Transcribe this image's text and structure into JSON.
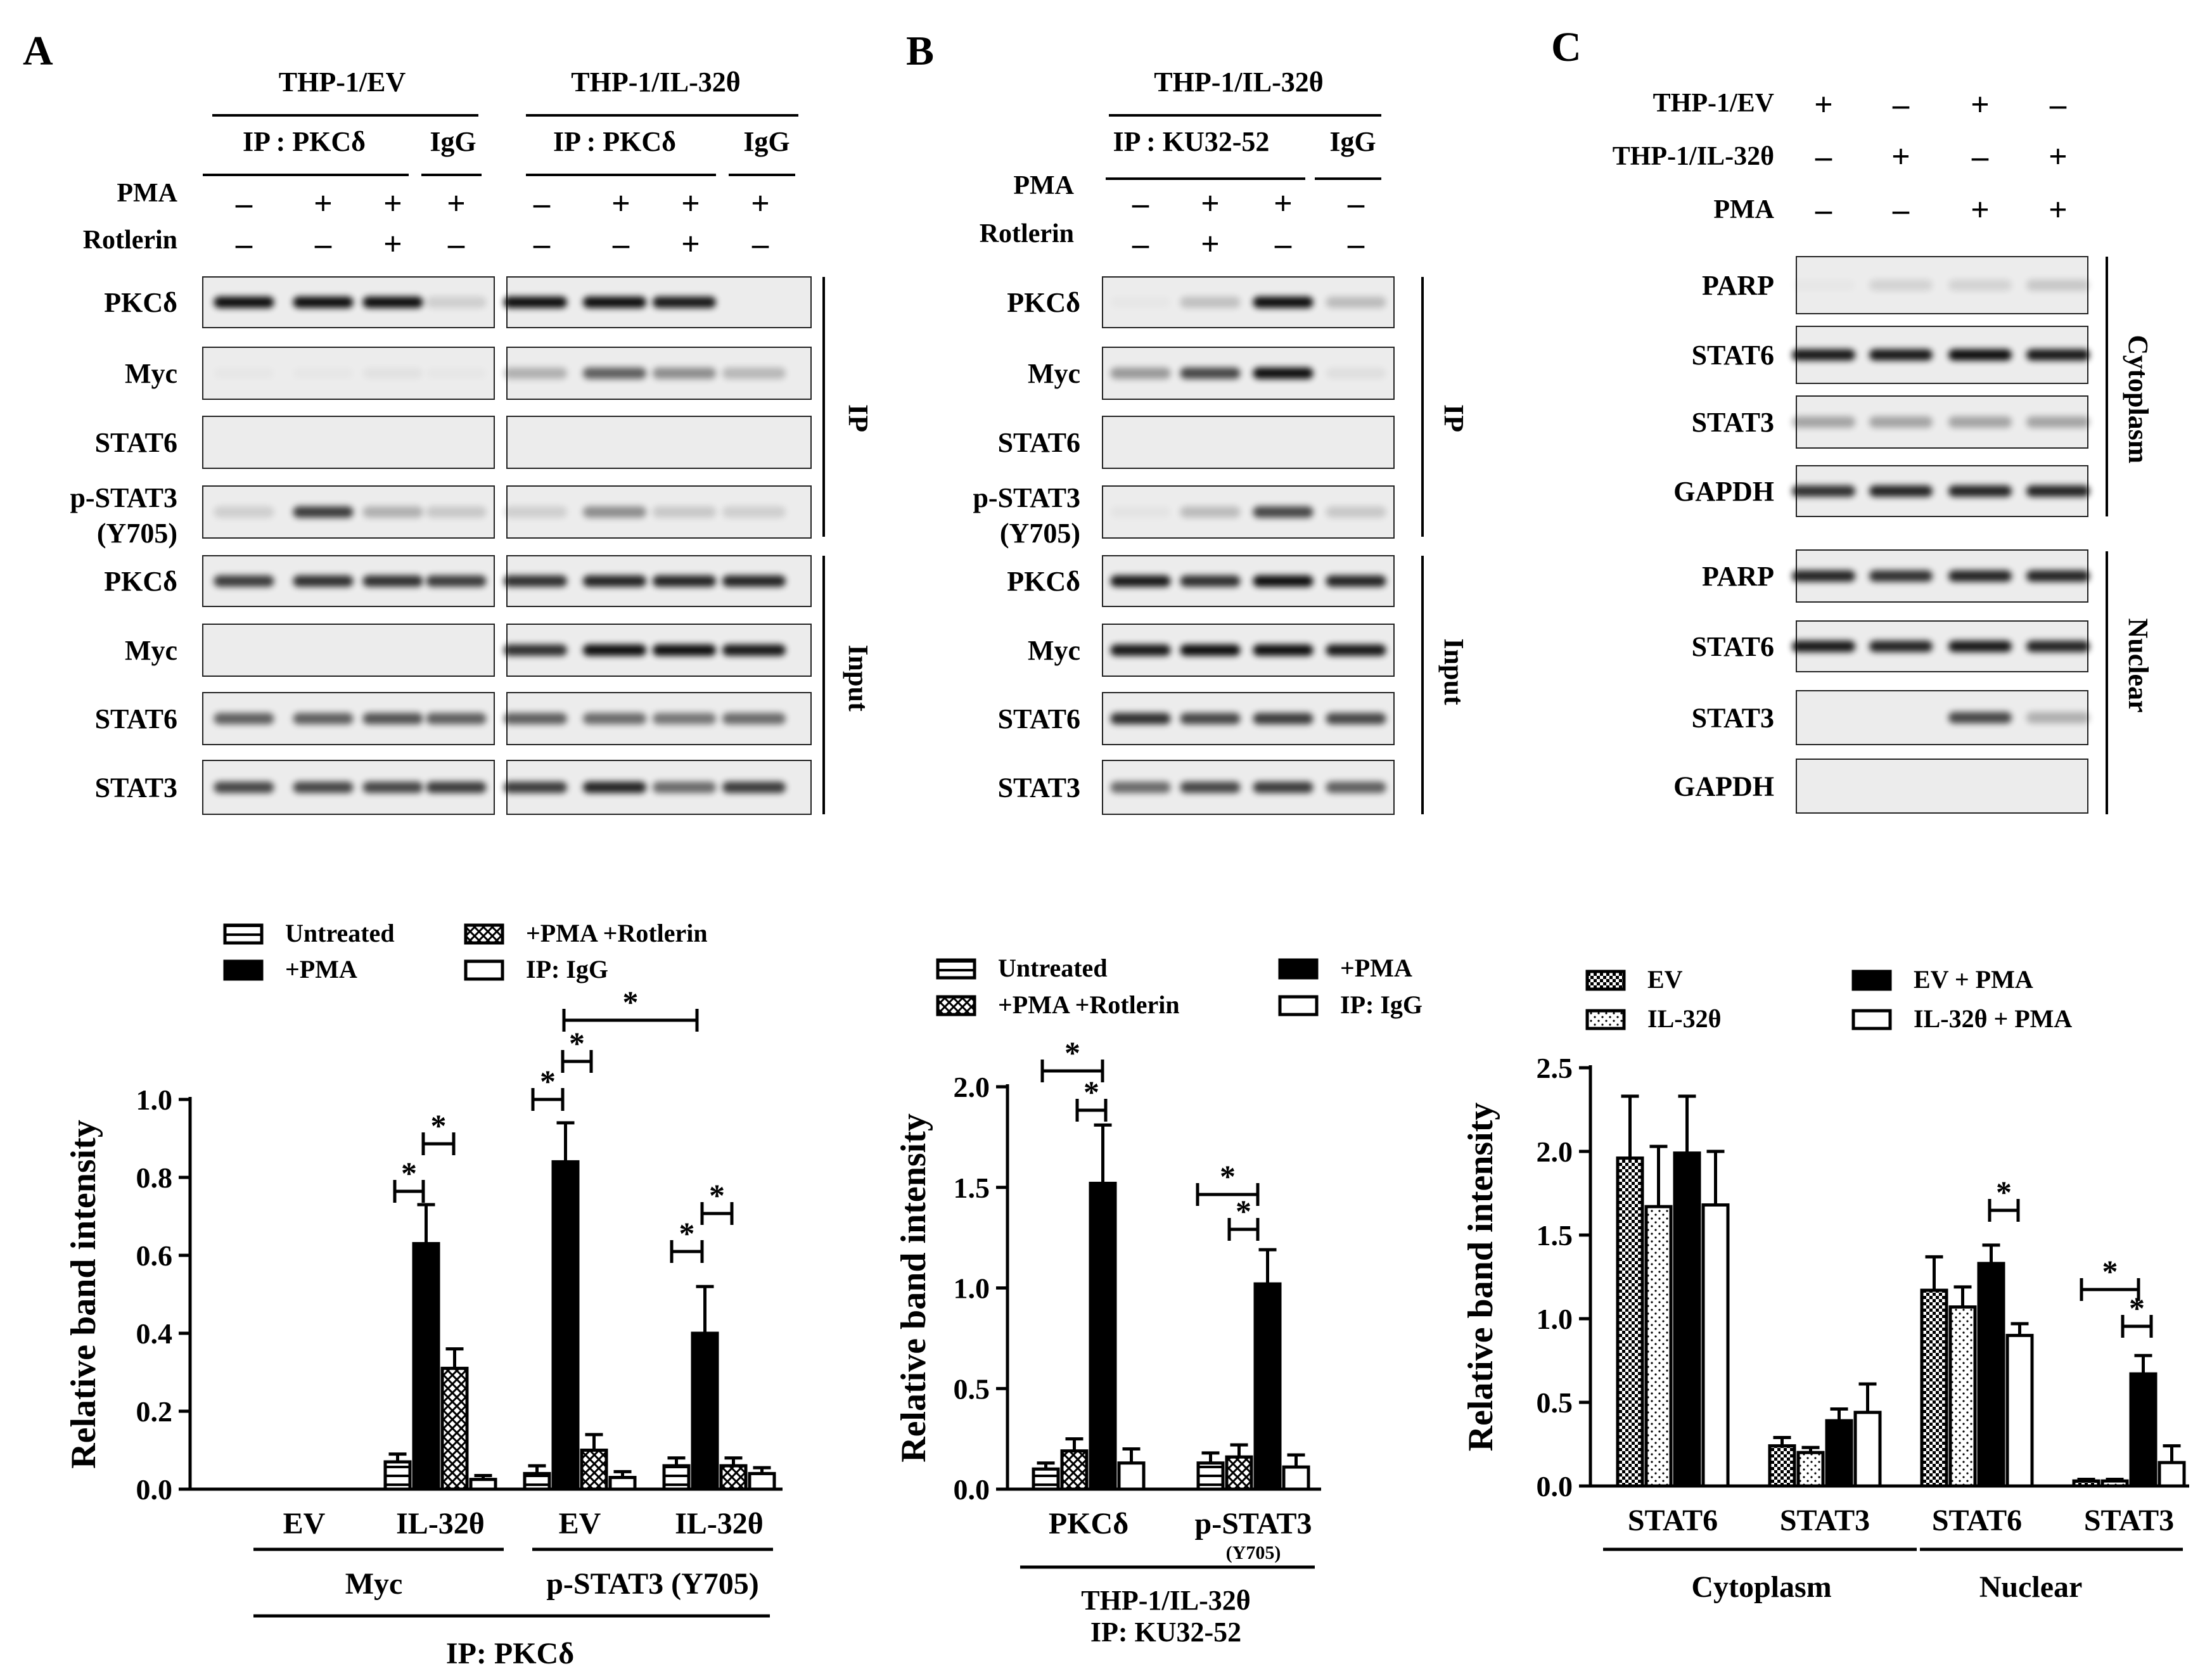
{
  "panel_labels": {
    "a": "A",
    "b": "B",
    "c": "C"
  },
  "blots": {
    "a": {
      "conditions": [
        "THP-1/EV",
        "THP-1/IL-32θ"
      ],
      "ip_label": "IP : PKCδ",
      "igg_label": "IgG",
      "treatment_rows": [
        {
          "label": "PMA",
          "ev": [
            "–",
            "+",
            "+",
            "+"
          ],
          "il32": [
            "–",
            "+",
            "+",
            "+"
          ]
        },
        {
          "label": "Rotlerin",
          "ev": [
            "–",
            "–",
            "+",
            "–"
          ],
          "il32": [
            "–",
            "–",
            "+",
            "–"
          ]
        }
      ],
      "rows": [
        "PKCδ",
        "Myc",
        "STAT6",
        "p-STAT3",
        "PKCδ",
        "Myc",
        "STAT6",
        "STAT3"
      ],
      "row_sublabel": "(Y705)",
      "section_labels": [
        "IP",
        "Input"
      ]
    },
    "b": {
      "condition": "THP-1/IL-32θ",
      "ip_label": "IP : KU32-52",
      "igg_label": "IgG",
      "treatment_rows": [
        {
          "label": "PMA",
          "values": [
            "–",
            "+",
            "+",
            "–"
          ]
        },
        {
          "label": "Rotlerin",
          "values": [
            "–",
            "+",
            "–",
            "–"
          ]
        }
      ],
      "rows": [
        "PKCδ",
        "Myc",
        "STAT6",
        "p-STAT3",
        "PKCδ",
        "Myc",
        "STAT6",
        "STAT3"
      ],
      "row_sublabel": "(Y705)",
      "section_labels": [
        "IP",
        "Input"
      ]
    },
    "c": {
      "treatment_rows": [
        {
          "label": "THP-1/EV",
          "values": [
            "+",
            "–",
            "+",
            "–"
          ]
        },
        {
          "label": "THP-1/IL-32θ",
          "values": [
            "–",
            "+",
            "–",
            "+"
          ]
        },
        {
          "label": "PMA",
          "values": [
            "–",
            "–",
            "+",
            "+"
          ]
        }
      ],
      "rows": [
        "PARP",
        "STAT6",
        "STAT3",
        "GAPDH",
        "PARP",
        "STAT6",
        "STAT3",
        "GAPDH"
      ],
      "section_labels": [
        "Cytoplasm",
        "Nuclear"
      ]
    }
  },
  "chart_data": [
    {
      "type": "bar",
      "ylabel": "Relative band intensity",
      "ylim": [
        0,
        1.0
      ],
      "yticks": [
        "0.0",
        "0.2",
        "0.4",
        "0.6",
        "0.8",
        "1.0"
      ],
      "categories": [
        "EV",
        "IL-32θ",
        "EV",
        "IL-32θ"
      ],
      "groups": [
        {
          "label": "Myc",
          "span": [
            0,
            1
          ]
        },
        {
          "label": "p-STAT3 (Y705)",
          "span": [
            2,
            3
          ]
        }
      ],
      "footer": "IP: PKCδ",
      "legend": [
        "Untreated",
        "+PMA",
        "+PMA +Rotlerin",
        "IP: IgG"
      ],
      "series": [
        {
          "name": "Untreated",
          "values": [
            0,
            0.07,
            0.04,
            0.06
          ],
          "errors": [
            0,
            0.02,
            0.02,
            0.02
          ]
        },
        {
          "name": "+PMA",
          "values": [
            0,
            0.63,
            0.84,
            0.4
          ],
          "errors": [
            0,
            0.1,
            0.1,
            0.12
          ]
        },
        {
          "name": "+PMA +Rotlerin",
          "values": [
            0,
            0.31,
            0.1,
            0.06
          ],
          "errors": [
            0,
            0.05,
            0.04,
            0.02
          ]
        },
        {
          "name": "IP: IgG",
          "values": [
            0,
            0.025,
            0.03,
            0.04
          ],
          "errors": [
            0,
            0.01,
            0.015,
            0.015
          ]
        }
      ],
      "significance": "*"
    },
    {
      "type": "bar",
      "ylabel": "Relative band intensity",
      "ylim": [
        0,
        2.0
      ],
      "yticks": [
        "0.0",
        "0.5",
        "1.0",
        "1.5",
        "2.0"
      ],
      "categories": [
        "PKCδ",
        "p-STAT3"
      ],
      "category_sublabels": [
        "",
        "(Y705)"
      ],
      "footer": [
        "THP-1/IL-32θ",
        "IP: KU32-52"
      ],
      "legend": [
        "Untreated",
        "+PMA",
        "+PMA +Rotlerin",
        "IP: IgG"
      ],
      "series": [
        {
          "name": "Untreated",
          "values": [
            0.1,
            0.13
          ],
          "errors": [
            0.03,
            0.05
          ]
        },
        {
          "name": "+PMA +Rotlerin",
          "values": [
            0.19,
            0.16
          ],
          "errors": [
            0.06,
            0.06
          ]
        },
        {
          "name": "+PMA",
          "values": [
            1.52,
            1.02
          ],
          "errors": [
            0.29,
            0.17
          ]
        },
        {
          "name": "IP: IgG",
          "values": [
            0.13,
            0.11
          ],
          "errors": [
            0.07,
            0.06
          ]
        }
      ],
      "significance": "*"
    },
    {
      "type": "bar",
      "ylabel": "Relative band intensity",
      "ylim": [
        0,
        2.5
      ],
      "yticks": [
        "0.0",
        "0.5",
        "1.0",
        "1.5",
        "2.0",
        "2.5"
      ],
      "categories": [
        "STAT6",
        "STAT3",
        "STAT6",
        "STAT3"
      ],
      "groups": [
        {
          "label": "Cytoplasm",
          "span": [
            0,
            1
          ]
        },
        {
          "label": "Nuclear",
          "span": [
            2,
            3
          ]
        }
      ],
      "legend": [
        "EV",
        "IL-32θ",
        "EV + PMA",
        "IL-32θ + PMA"
      ],
      "series": [
        {
          "name": "EV",
          "values": [
            1.96,
            0.24,
            1.17,
            0.03
          ],
          "errors": [
            0.37,
            0.05,
            0.2,
            0.01
          ]
        },
        {
          "name": "IL-32θ",
          "values": [
            1.67,
            0.2,
            1.07,
            0.03
          ],
          "errors": [
            0.36,
            0.03,
            0.12,
            0.01
          ]
        },
        {
          "name": "EV + PMA",
          "values": [
            1.99,
            0.39,
            1.33,
            0.67
          ],
          "errors": [
            0.34,
            0.07,
            0.11,
            0.11
          ]
        },
        {
          "name": "IL-32θ + PMA",
          "values": [
            1.68,
            0.44,
            0.9,
            0.14
          ],
          "errors": [
            0.32,
            0.17,
            0.07,
            0.1
          ]
        }
      ],
      "significance": "*"
    }
  ]
}
